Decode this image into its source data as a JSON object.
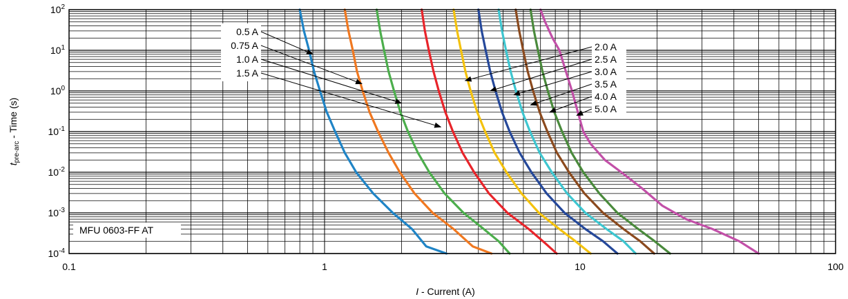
{
  "chart_data": {
    "type": "line",
    "title": "",
    "annotation": "MFU 0603-FF AT",
    "xlabel": {
      "prefix": "I",
      "suffix": " - Current (A)"
    },
    "ylabel": {
      "prefix": "t",
      "sub": "pre-arc",
      "suffix": " - Time (s)"
    },
    "x_scale": "log",
    "y_scale": "log",
    "xlim": [
      0.1,
      100
    ],
    "ylim": [
      0.0001,
      100
    ],
    "x_ticks": [
      {
        "value": 0.1,
        "label": "0.1"
      },
      {
        "value": 1,
        "label": "1"
      },
      {
        "value": 10,
        "label": "10"
      },
      {
        "value": 100,
        "label": "100"
      }
    ],
    "y_ticks": [
      {
        "value": 100,
        "base": "10",
        "exp": "2"
      },
      {
        "value": 10,
        "base": "10",
        "exp": "1"
      },
      {
        "value": 1,
        "base": "10",
        "exp": "0"
      },
      {
        "value": 0.1,
        "base": "10",
        "exp": "-1"
      },
      {
        "value": 0.01,
        "base": "10",
        "exp": "-2"
      },
      {
        "value": 0.001,
        "base": "10",
        "exp": "-3"
      },
      {
        "value": 0.0001,
        "base": "10",
        "exp": "-4"
      }
    ],
    "grid": true,
    "series": [
      {
        "name": "0.5 A",
        "color": "#1f84c6",
        "points": [
          [
            0.8,
            100
          ],
          [
            0.83,
            30
          ],
          [
            0.87,
            10
          ],
          [
            0.91,
            3
          ],
          [
            0.96,
            1
          ],
          [
            1.02,
            0.3
          ],
          [
            1.1,
            0.1
          ],
          [
            1.2,
            0.03
          ],
          [
            1.33,
            0.01
          ],
          [
            1.55,
            0.003
          ],
          [
            1.85,
            0.001
          ],
          [
            2.2,
            0.0004
          ],
          [
            2.5,
            0.00015
          ],
          [
            3.0,
            0.0001
          ]
        ]
      },
      {
        "name": "0.75 A",
        "color": "#f07820",
        "points": [
          [
            1.2,
            100
          ],
          [
            1.24,
            30
          ],
          [
            1.29,
            10
          ],
          [
            1.34,
            3
          ],
          [
            1.41,
            1
          ],
          [
            1.5,
            0.3
          ],
          [
            1.62,
            0.1
          ],
          [
            1.78,
            0.03
          ],
          [
            1.97,
            0.01
          ],
          [
            2.25,
            0.003
          ],
          [
            2.65,
            0.001
          ],
          [
            3.2,
            0.0004
          ],
          [
            3.8,
            0.00015
          ],
          [
            4.5,
            0.0001
          ]
        ]
      },
      {
        "name": "1.0 A",
        "color": "#4cae4c",
        "points": [
          [
            1.6,
            100
          ],
          [
            1.65,
            30
          ],
          [
            1.71,
            10
          ],
          [
            1.78,
            3
          ],
          [
            1.87,
            1
          ],
          [
            1.98,
            0.3
          ],
          [
            2.12,
            0.1
          ],
          [
            2.32,
            0.03
          ],
          [
            2.57,
            0.01
          ],
          [
            2.95,
            0.003
          ],
          [
            3.5,
            0.001
          ],
          [
            4.2,
            0.0004
          ],
          [
            4.8,
            0.0002
          ],
          [
            5.3,
            0.0001
          ]
        ]
      },
      {
        "name": "1.5 A",
        "color": "#e8242a",
        "points": [
          [
            2.4,
            100
          ],
          [
            2.47,
            30
          ],
          [
            2.56,
            10
          ],
          [
            2.67,
            3
          ],
          [
            2.8,
            1
          ],
          [
            2.97,
            0.3
          ],
          [
            3.18,
            0.1
          ],
          [
            3.47,
            0.03
          ],
          [
            3.85,
            0.01
          ],
          [
            4.4,
            0.003
          ],
          [
            5.2,
            0.001
          ],
          [
            6.3,
            0.0004
          ],
          [
            7.3,
            0.00018
          ],
          [
            8.1,
            0.0001
          ]
        ]
      },
      {
        "name": "2.0 A",
        "color": "#f4c20d",
        "points": [
          [
            3.2,
            100
          ],
          [
            3.3,
            30
          ],
          [
            3.42,
            10
          ],
          [
            3.56,
            3
          ],
          [
            3.73,
            1
          ],
          [
            3.96,
            0.3
          ],
          [
            4.25,
            0.1
          ],
          [
            4.63,
            0.03
          ],
          [
            5.15,
            0.01
          ],
          [
            5.9,
            0.003
          ],
          [
            6.9,
            0.001
          ],
          [
            8.3,
            0.0004
          ],
          [
            9.6,
            0.0002
          ],
          [
            11.0,
            0.0001
          ]
        ]
      },
      {
        "name": "2.5 A",
        "color": "#25489a",
        "points": [
          [
            4.0,
            100
          ],
          [
            4.12,
            30
          ],
          [
            4.27,
            10
          ],
          [
            4.45,
            3
          ],
          [
            4.67,
            1
          ],
          [
            4.95,
            0.3
          ],
          [
            5.3,
            0.1
          ],
          [
            5.8,
            0.03
          ],
          [
            6.45,
            0.01
          ],
          [
            7.4,
            0.003
          ],
          [
            8.7,
            0.001
          ],
          [
            10.5,
            0.0004
          ],
          [
            12.3,
            0.0002
          ],
          [
            14.0,
            0.0001
          ]
        ]
      },
      {
        "name": "3.0 A",
        "color": "#3ec6d0",
        "points": [
          [
            4.8,
            100
          ],
          [
            4.95,
            30
          ],
          [
            5.13,
            10
          ],
          [
            5.35,
            3
          ],
          [
            5.61,
            1
          ],
          [
            5.95,
            0.3
          ],
          [
            6.37,
            0.1
          ],
          [
            6.95,
            0.03
          ],
          [
            7.75,
            0.01
          ],
          [
            8.9,
            0.003
          ],
          [
            10.5,
            0.001
          ],
          [
            12.7,
            0.0004
          ],
          [
            14.8,
            0.0002
          ],
          [
            16.5,
            0.0001
          ]
        ]
      },
      {
        "name": "3.5 A",
        "color": "#8b4a1e",
        "points": [
          [
            5.6,
            100
          ],
          [
            5.78,
            30
          ],
          [
            5.99,
            10
          ],
          [
            6.24,
            3
          ],
          [
            6.55,
            1
          ],
          [
            6.95,
            0.3
          ],
          [
            7.45,
            0.1
          ],
          [
            8.12,
            0.03
          ],
          [
            9.05,
            0.01
          ],
          [
            10.4,
            0.003
          ],
          [
            12.3,
            0.001
          ],
          [
            14.8,
            0.0004
          ],
          [
            17.2,
            0.0002
          ],
          [
            19.5,
            0.0001
          ]
        ]
      },
      {
        "name": "4.0 A",
        "color": "#4a8a3c",
        "points": [
          [
            6.4,
            100
          ],
          [
            6.6,
            30
          ],
          [
            6.84,
            10
          ],
          [
            7.13,
            3
          ],
          [
            7.48,
            1
          ],
          [
            7.93,
            0.3
          ],
          [
            8.5,
            0.1
          ],
          [
            9.27,
            0.03
          ],
          [
            10.3,
            0.01
          ],
          [
            11.9,
            0.003
          ],
          [
            14.0,
            0.001
          ],
          [
            16.9,
            0.0004
          ],
          [
            19.6,
            0.0002
          ],
          [
            22.5,
            0.0001
          ]
        ]
      },
      {
        "name": "5.0 A",
        "color": "#c250a8",
        "points": [
          [
            7.0,
            100
          ],
          [
            7.3,
            50
          ],
          [
            7.8,
            20
          ],
          [
            8.3,
            10
          ],
          [
            8.8,
            3
          ],
          [
            9.3,
            1
          ],
          [
            9.8,
            0.3
          ],
          [
            10.3,
            0.1
          ],
          [
            11.0,
            0.05
          ],
          [
            12.5,
            0.02
          ],
          [
            14.5,
            0.01
          ],
          [
            17.5,
            0.004
          ],
          [
            21.0,
            0.0015
          ],
          [
            26.0,
            0.0007
          ],
          [
            33.0,
            0.0004
          ],
          [
            42.0,
            0.0002
          ],
          [
            50.0,
            0.0001
          ]
        ]
      }
    ],
    "callouts": [
      {
        "series": "0.5 A",
        "side": "left",
        "target": [
          0.9,
          8
        ]
      },
      {
        "series": "0.75 A",
        "side": "left",
        "target": [
          1.4,
          1.5
        ]
      },
      {
        "series": "1.0 A",
        "side": "left",
        "target": [
          2.0,
          0.5
        ]
      },
      {
        "series": "1.5 A",
        "side": "left",
        "target": [
          2.85,
          0.13
        ]
      },
      {
        "series": "2.0 A",
        "side": "right",
        "target": [
          3.55,
          1.8
        ]
      },
      {
        "series": "2.5 A",
        "side": "right",
        "target": [
          4.45,
          1.0
        ]
      },
      {
        "series": "3.0 A",
        "side": "right",
        "target": [
          5.5,
          0.8
        ]
      },
      {
        "series": "3.5 A",
        "side": "right",
        "target": [
          6.4,
          0.45
        ]
      },
      {
        "series": "4.0 A",
        "side": "right",
        "target": [
          7.6,
          0.3
        ]
      },
      {
        "series": "5.0 A",
        "side": "right",
        "target": [
          9.7,
          0.25
        ]
      }
    ]
  }
}
